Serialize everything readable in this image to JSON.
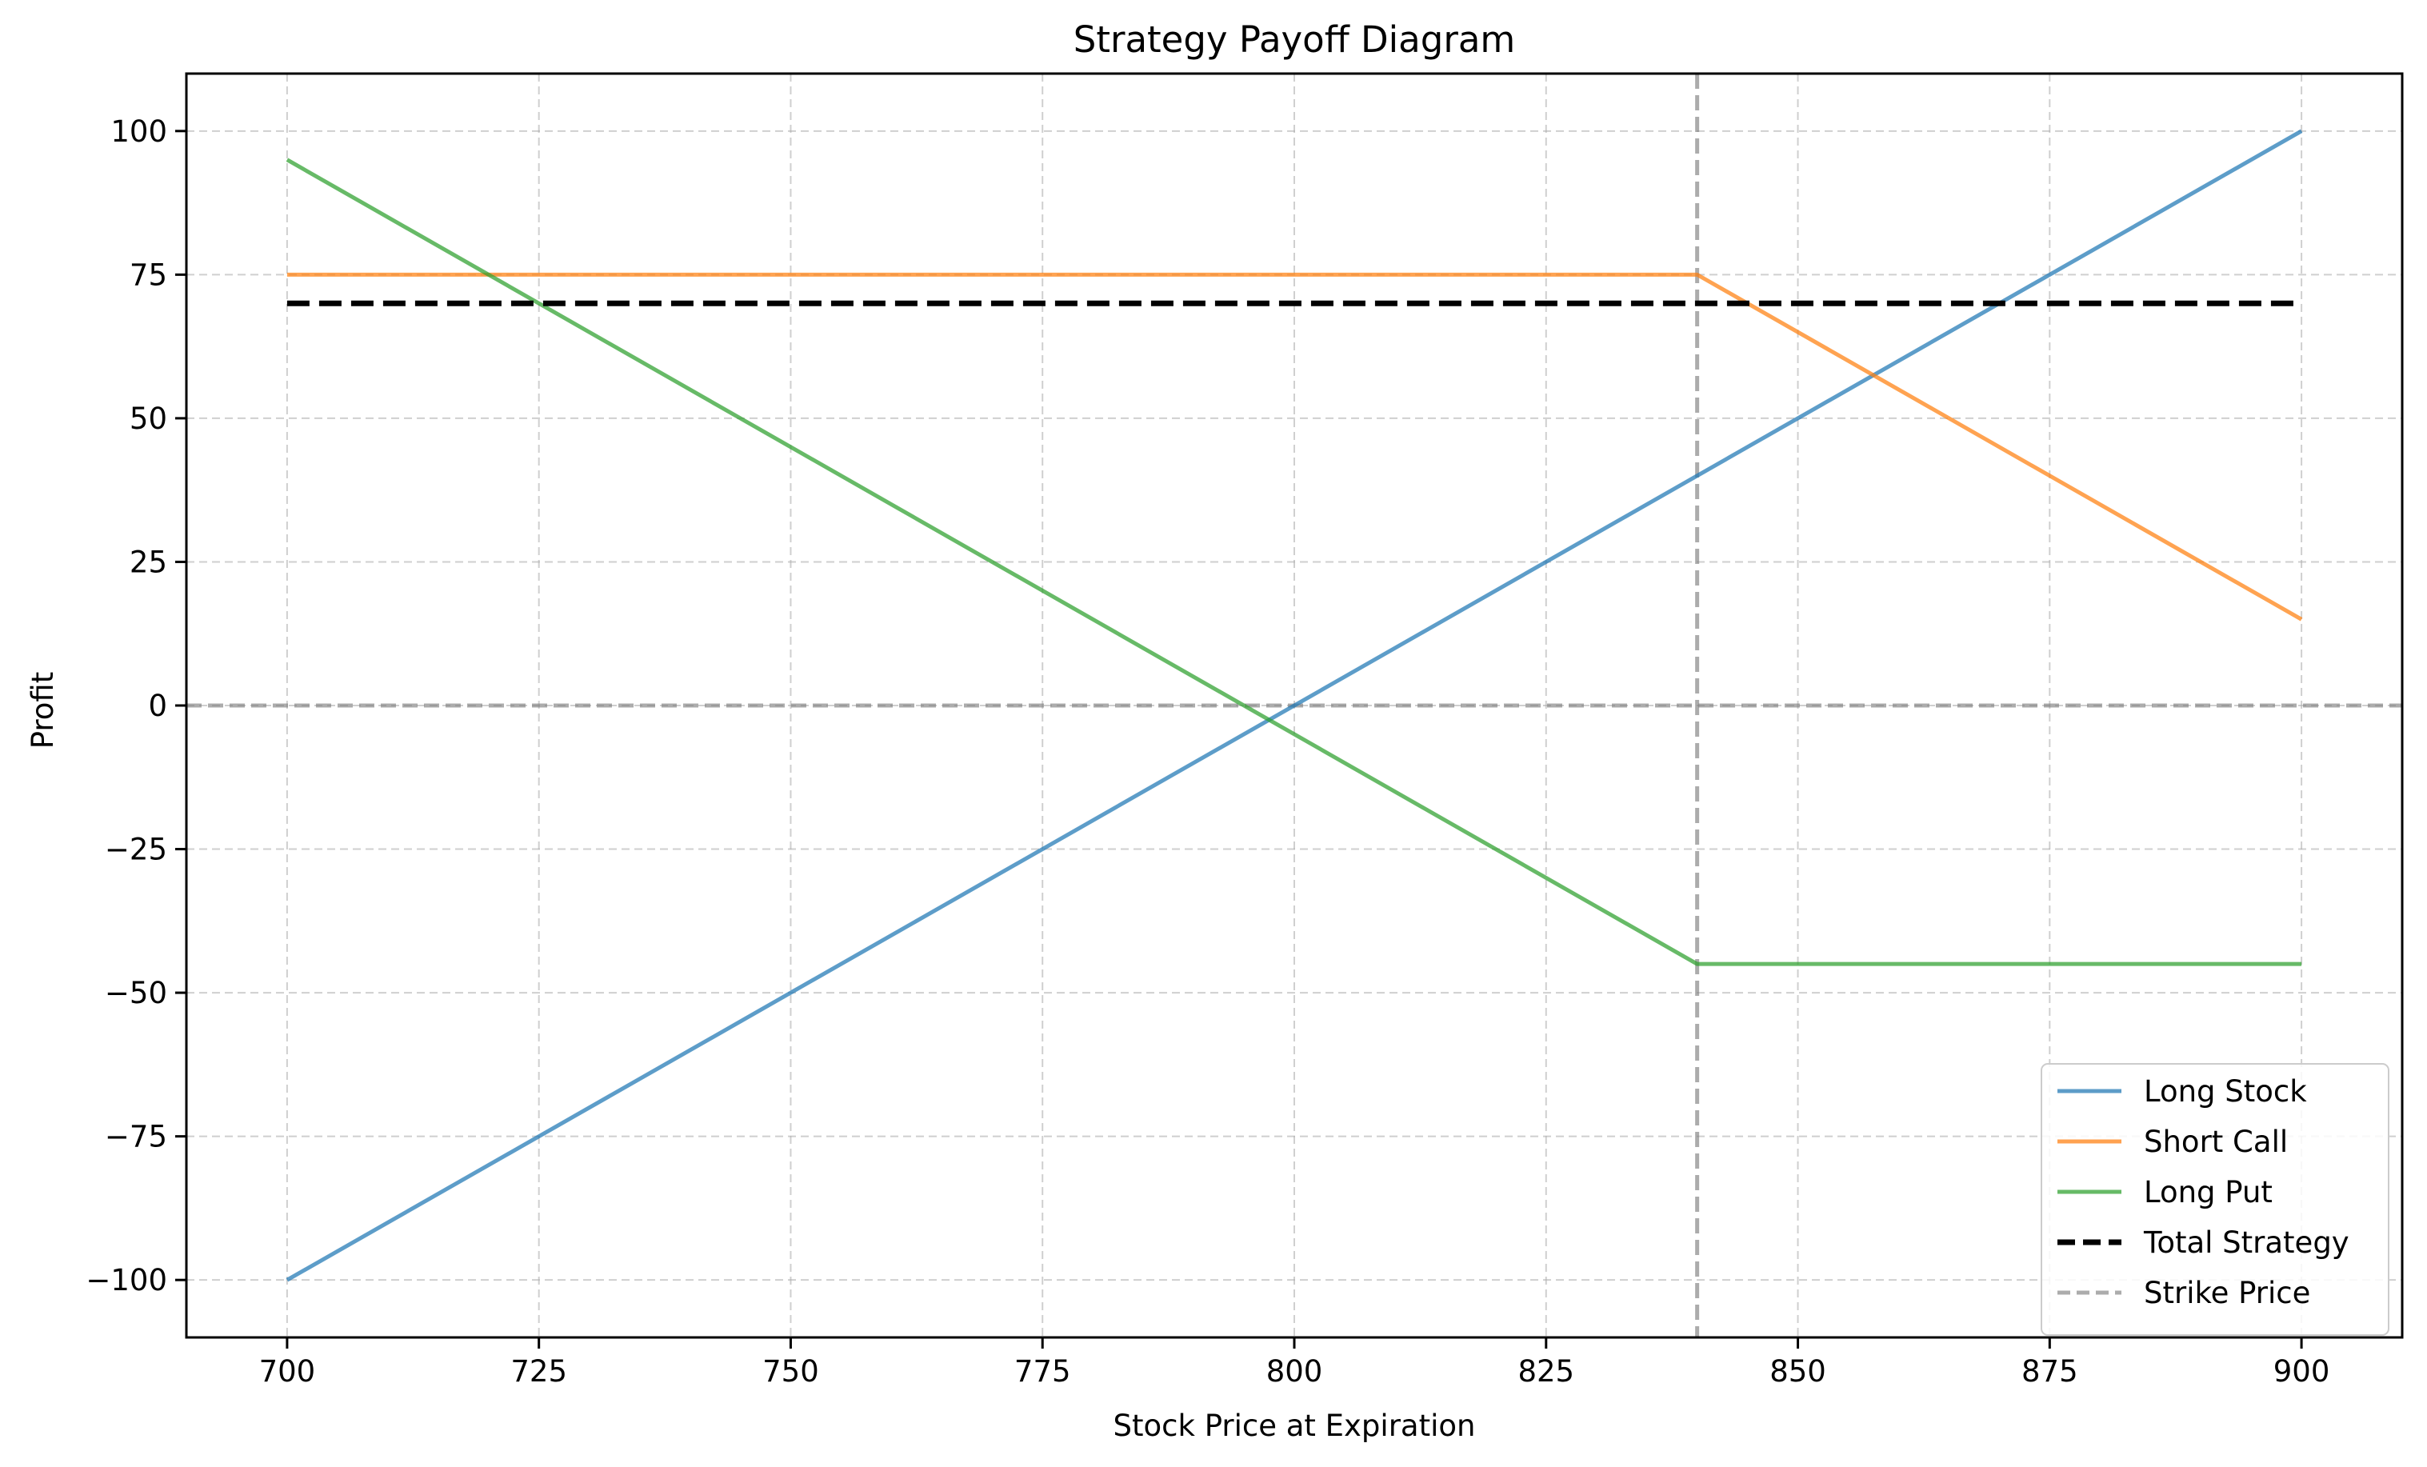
{
  "chart_data": {
    "type": "line",
    "title": "Strategy Payoff Diagram",
    "xlabel": "Stock Price at Expiration",
    "ylabel": "Profit",
    "xlim": [
      690,
      910
    ],
    "ylim": [
      -110,
      110
    ],
    "xticks": [
      700,
      725,
      750,
      775,
      800,
      825,
      850,
      875,
      900
    ],
    "yticks": [
      -100,
      -75,
      -50,
      -25,
      0,
      25,
      50,
      75,
      100
    ],
    "grid": true,
    "legend_position": "lower right",
    "series": [
      {
        "name": "Long Stock",
        "color": "#1f77b4",
        "dash": "solid",
        "x": [
          700,
          900
        ],
        "y": [
          -100,
          100
        ]
      },
      {
        "name": "Short Call",
        "color": "#ff7f0e",
        "dash": "solid",
        "x": [
          700,
          840,
          900
        ],
        "y": [
          75,
          75,
          15
        ]
      },
      {
        "name": "Long Put",
        "color": "#2ca02c",
        "dash": "solid",
        "x": [
          700,
          840,
          900
        ],
        "y": [
          95,
          -45,
          -45
        ]
      },
      {
        "name": "Total Strategy",
        "color": "#000000",
        "dash": "dashed",
        "x": [
          700,
          900
        ],
        "y": [
          70,
          70
        ]
      }
    ],
    "reference_lines": [
      {
        "name": "Strike Price",
        "orientation": "vertical",
        "value": 840,
        "color": "#808080",
        "dash": "dashed",
        "in_legend": true
      },
      {
        "name": "",
        "orientation": "horizontal",
        "value": 0,
        "color": "#808080",
        "dash": "dashed",
        "in_legend": false
      }
    ]
  }
}
